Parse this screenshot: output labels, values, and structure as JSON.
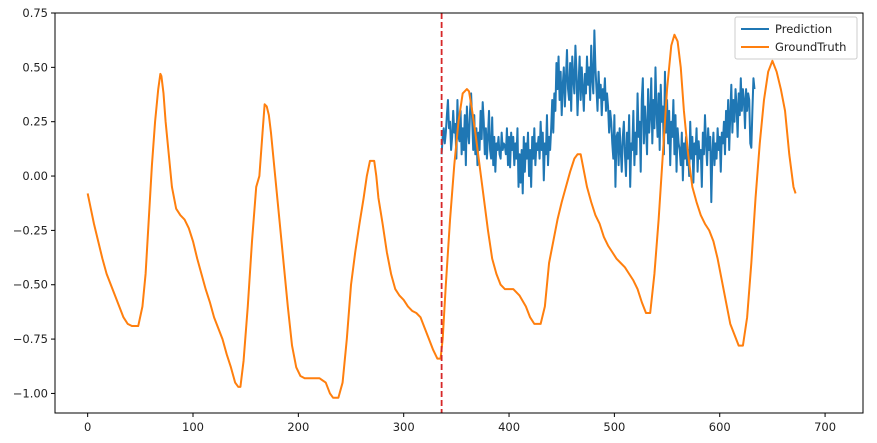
{
  "chart_data": {
    "type": "line",
    "title": "",
    "xlabel": "",
    "ylabel": "",
    "xlim": [
      -31,
      736
    ],
    "ylim": [
      -1.09,
      0.75
    ],
    "x_ticks": [
      0,
      100,
      200,
      300,
      400,
      500,
      600,
      700
    ],
    "y_ticks": [
      -1.0,
      -0.75,
      -0.5,
      -0.25,
      0.0,
      0.25,
      0.5,
      0.75
    ],
    "legend_position": "top-right",
    "grid": false,
    "vline": {
      "x": 336,
      "color": "#d62728",
      "style": "dashed"
    },
    "series": [
      {
        "name": "Prediction",
        "color": "#1f77b4",
        "x_start": 336,
        "x_step": 1,
        "values": [
          0.1,
          0.18,
          0.22,
          0.15,
          0.2,
          0.28,
          0.35,
          0.22,
          0.25,
          0.12,
          0.18,
          0.3,
          0.2,
          0.24,
          0.08,
          0.35,
          0.18,
          0.16,
          0.3,
          0.1,
          0.22,
          0.12,
          0.28,
          0.05,
          0.32,
          0.2,
          0.15,
          0.3,
          0.38,
          0.26,
          0.12,
          0.28,
          0.1,
          0.22,
          0.05,
          0.2,
          0.12,
          0.3,
          0.17,
          0.34,
          0.25,
          0.1,
          0.22,
          0.08,
          0.18,
          0.3,
          0.12,
          0.08,
          0.27,
          0.05,
          0.18,
          0.02,
          0.15,
          0.12,
          0.18,
          0.1,
          0.08,
          0.2,
          0.12,
          0.15,
          0.14,
          0.1,
          0.22,
          0.05,
          0.18,
          0.04,
          0.2,
          0.12,
          0.18,
          0.05,
          0.15,
          0.08,
          0.22,
          -0.05,
          0.1,
          -0.03,
          0.12,
          -0.08,
          0.18,
          0.02,
          0.15,
          0.08,
          0.2,
          0.0,
          0.12,
          -0.05,
          0.18,
          0.08,
          0.22,
          0.05,
          0.15,
          0.12,
          0.18,
          0.08,
          0.25,
          0.12,
          0.2,
          -0.02,
          0.15,
          0.1,
          0.28,
          0.05,
          0.18,
          0.12,
          0.22,
          0.35,
          0.2,
          0.38,
          0.3,
          0.52,
          0.4,
          0.55,
          0.35,
          0.48,
          0.28,
          0.42,
          0.5,
          0.32,
          0.45,
          0.58,
          0.4,
          0.35,
          0.52,
          0.3,
          0.55,
          0.45,
          0.38,
          0.6,
          0.48,
          0.28,
          0.42,
          0.55,
          0.35,
          0.5,
          0.4,
          0.3,
          0.47,
          0.38,
          0.55,
          0.42,
          0.5,
          0.35,
          0.6,
          0.45,
          0.38,
          0.67,
          0.5,
          0.4,
          0.3,
          0.48,
          0.36,
          0.42,
          0.28,
          0.4,
          0.35,
          0.45,
          0.3,
          0.38,
          0.32,
          0.2,
          0.3,
          0.25,
          0.15,
          0.08,
          0.28,
          -0.05,
          0.18,
          0.2,
          0.05,
          0.22,
          0.12,
          0.02,
          0.18,
          0.25,
          0.1,
          0.0,
          0.2,
          0.08,
          0.28,
          -0.05,
          0.15,
          0.12,
          0.3,
          0.05,
          0.2,
          0.1,
          0.38,
          0.18,
          0.25,
          0.02,
          0.35,
          0.45,
          0.15,
          0.32,
          0.22,
          0.1,
          0.4,
          0.2,
          0.28,
          0.45,
          0.15,
          0.35,
          0.22,
          0.5,
          0.3,
          0.18,
          0.38,
          0.12,
          0.42,
          0.25,
          0.32,
          0.1,
          0.48,
          0.2,
          0.35,
          0.15,
          0.3,
          0.05,
          0.25,
          0.18,
          0.35,
          0.1,
          0.28,
          0.02,
          0.22,
          0.15,
          0.12,
          0.05,
          0.2,
          -0.02,
          0.15,
          0.08,
          0.18,
          0.05,
          0.12,
          0.0,
          0.25,
          0.08,
          0.18,
          -0.03,
          0.15,
          0.1,
          0.22,
          0.02,
          0.16,
          0.08,
          0.12,
          -0.05,
          0.2,
          0.1,
          0.28,
          0.15,
          0.05,
          0.22,
          0.12,
          0.18,
          -0.12,
          0.1,
          0.2,
          0.05,
          0.15,
          0.08,
          0.22,
          0.12,
          0.18,
          0.02,
          0.2,
          0.15,
          0.25,
          0.1,
          0.3,
          0.18,
          0.35,
          0.12,
          0.28,
          0.42,
          0.2,
          0.35,
          0.25,
          0.4,
          0.32,
          0.18,
          0.38,
          0.28,
          0.45,
          0.3,
          0.4,
          0.35,
          0.22,
          0.4,
          0.3,
          0.38,
          0.35,
          0.15,
          0.13,
          0.3,
          0.45,
          0.4
        ]
      },
      {
        "name": "GroundTruth",
        "color": "#ff7f0e",
        "points": [
          [
            0,
            -0.08
          ],
          [
            3,
            -0.15
          ],
          [
            6,
            -0.22
          ],
          [
            10,
            -0.3
          ],
          [
            14,
            -0.38
          ],
          [
            18,
            -0.45
          ],
          [
            22,
            -0.5
          ],
          [
            26,
            -0.55
          ],
          [
            30,
            -0.6
          ],
          [
            34,
            -0.65
          ],
          [
            38,
            -0.68
          ],
          [
            42,
            -0.69
          ],
          [
            48,
            -0.69
          ],
          [
            52,
            -0.6
          ],
          [
            55,
            -0.45
          ],
          [
            58,
            -0.2
          ],
          [
            61,
            0.05
          ],
          [
            64,
            0.25
          ],
          [
            67,
            0.4
          ],
          [
            69,
            0.47
          ],
          [
            70,
            0.46
          ],
          [
            72,
            0.38
          ],
          [
            74,
            0.25
          ],
          [
            77,
            0.1
          ],
          [
            80,
            -0.05
          ],
          [
            84,
            -0.15
          ],
          [
            88,
            -0.18
          ],
          [
            92,
            -0.2
          ],
          [
            96,
            -0.24
          ],
          [
            100,
            -0.3
          ],
          [
            104,
            -0.38
          ],
          [
            108,
            -0.45
          ],
          [
            112,
            -0.52
          ],
          [
            116,
            -0.58
          ],
          [
            120,
            -0.65
          ],
          [
            124,
            -0.7
          ],
          [
            128,
            -0.75
          ],
          [
            132,
            -0.82
          ],
          [
            136,
            -0.88
          ],
          [
            140,
            -0.95
          ],
          [
            143,
            -0.97
          ],
          [
            145,
            -0.97
          ],
          [
            148,
            -0.85
          ],
          [
            152,
            -0.6
          ],
          [
            156,
            -0.3
          ],
          [
            160,
            -0.05
          ],
          [
            163,
            0.0
          ],
          [
            166,
            0.2
          ],
          [
            168,
            0.33
          ],
          [
            170,
            0.32
          ],
          [
            172,
            0.28
          ],
          [
            174,
            0.2
          ],
          [
            178,
            0.0
          ],
          [
            182,
            -0.2
          ],
          [
            186,
            -0.4
          ],
          [
            190,
            -0.6
          ],
          [
            194,
            -0.78
          ],
          [
            198,
            -0.88
          ],
          [
            202,
            -0.92
          ],
          [
            206,
            -0.93
          ],
          [
            210,
            -0.93
          ],
          [
            220,
            -0.93
          ],
          [
            226,
            -0.95
          ],
          [
            230,
            -1.0
          ],
          [
            233,
            -1.02
          ],
          [
            238,
            -1.02
          ],
          [
            242,
            -0.95
          ],
          [
            246,
            -0.75
          ],
          [
            250,
            -0.5
          ],
          [
            254,
            -0.35
          ],
          [
            258,
            -0.22
          ],
          [
            262,
            -0.1
          ],
          [
            265,
            0.0
          ],
          [
            268,
            0.07
          ],
          [
            272,
            0.07
          ],
          [
            274,
            0.0
          ],
          [
            276,
            -0.1
          ],
          [
            280,
            -0.22
          ],
          [
            284,
            -0.35
          ],
          [
            288,
            -0.45
          ],
          [
            292,
            -0.52
          ],
          [
            296,
            -0.55
          ],
          [
            300,
            -0.57
          ],
          [
            304,
            -0.6
          ],
          [
            308,
            -0.62
          ],
          [
            312,
            -0.63
          ],
          [
            316,
            -0.65
          ],
          [
            320,
            -0.7
          ],
          [
            324,
            -0.75
          ],
          [
            328,
            -0.8
          ],
          [
            332,
            -0.84
          ],
          [
            335,
            -0.84
          ],
          [
            337,
            -0.75
          ],
          [
            340,
            -0.5
          ],
          [
            344,
            -0.2
          ],
          [
            348,
            0.05
          ],
          [
            352,
            0.25
          ],
          [
            356,
            0.38
          ],
          [
            360,
            0.4
          ],
          [
            362,
            0.39
          ],
          [
            365,
            0.3
          ],
          [
            368,
            0.2
          ],
          [
            372,
            0.05
          ],
          [
            376,
            -0.1
          ],
          [
            380,
            -0.25
          ],
          [
            384,
            -0.38
          ],
          [
            388,
            -0.45
          ],
          [
            392,
            -0.5
          ],
          [
            396,
            -0.52
          ],
          [
            404,
            -0.52
          ],
          [
            410,
            -0.55
          ],
          [
            416,
            -0.6
          ],
          [
            420,
            -0.65
          ],
          [
            424,
            -0.68
          ],
          [
            430,
            -0.68
          ],
          [
            434,
            -0.6
          ],
          [
            438,
            -0.4
          ],
          [
            442,
            -0.3
          ],
          [
            446,
            -0.2
          ],
          [
            450,
            -0.12
          ],
          [
            454,
            -0.05
          ],
          [
            458,
            0.02
          ],
          [
            462,
            0.08
          ],
          [
            465,
            0.1
          ],
          [
            468,
            0.1
          ],
          [
            470,
            0.05
          ],
          [
            474,
            -0.05
          ],
          [
            478,
            -0.12
          ],
          [
            482,
            -0.18
          ],
          [
            486,
            -0.22
          ],
          [
            490,
            -0.28
          ],
          [
            494,
            -0.32
          ],
          [
            498,
            -0.35
          ],
          [
            502,
            -0.38
          ],
          [
            506,
            -0.4
          ],
          [
            510,
            -0.42
          ],
          [
            514,
            -0.45
          ],
          [
            518,
            -0.48
          ],
          [
            522,
            -0.52
          ],
          [
            526,
            -0.58
          ],
          [
            530,
            -0.63
          ],
          [
            534,
            -0.63
          ],
          [
            538,
            -0.45
          ],
          [
            542,
            -0.2
          ],
          [
            546,
            0.1
          ],
          [
            550,
            0.4
          ],
          [
            554,
            0.6
          ],
          [
            557,
            0.65
          ],
          [
            560,
            0.62
          ],
          [
            563,
            0.5
          ],
          [
            566,
            0.3
          ],
          [
            570,
            0.1
          ],
          [
            574,
            -0.05
          ],
          [
            578,
            -0.12
          ],
          [
            582,
            -0.18
          ],
          [
            586,
            -0.22
          ],
          [
            590,
            -0.25
          ],
          [
            594,
            -0.3
          ],
          [
            598,
            -0.38
          ],
          [
            602,
            -0.48
          ],
          [
            606,
            -0.58
          ],
          [
            610,
            -0.68
          ],
          [
            614,
            -0.73
          ],
          [
            618,
            -0.78
          ],
          [
            622,
            -0.78
          ],
          [
            626,
            -0.65
          ],
          [
            630,
            -0.4
          ],
          [
            634,
            -0.1
          ],
          [
            638,
            0.15
          ],
          [
            642,
            0.35
          ],
          [
            646,
            0.48
          ],
          [
            650,
            0.53
          ],
          [
            654,
            0.48
          ],
          [
            658,
            0.4
          ],
          [
            662,
            0.3
          ],
          [
            666,
            0.1
          ],
          [
            670,
            -0.05
          ],
          [
            672,
            -0.08
          ]
        ]
      }
    ]
  }
}
